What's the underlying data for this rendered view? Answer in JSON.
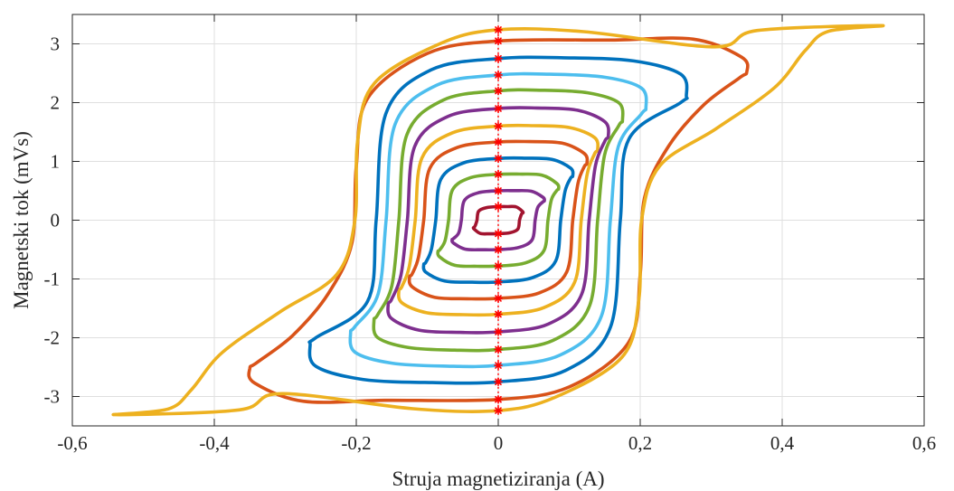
{
  "chart_data": {
    "type": "line",
    "title": "",
    "xlabel": "Struja magnetiziranja (A)",
    "ylabel": "Magnetski tok (mVs)",
    "xlim": [
      -0.6,
      0.6
    ],
    "ylim": [
      -3.5,
      3.5
    ],
    "xticks": [
      -0.6,
      -0.4,
      -0.2,
      0,
      0.2,
      0.4,
      0.6
    ],
    "xtick_labels": [
      "-0,6",
      "-0,4",
      "-0,2",
      "0",
      "0,2",
      "0,4",
      "0,6"
    ],
    "yticks": [
      -3,
      -2,
      -1,
      0,
      1,
      2,
      3
    ],
    "ytick_labels": [
      "-3",
      "-2",
      "-1",
      "0",
      "1",
      "2",
      "3"
    ],
    "grid": true,
    "legend": "none",
    "series": [
      {
        "color": "#edb120",
        "saturated": true,
        "i_peak": 0.54,
        "phi_peak": 3.31,
        "phi_r": 3.24,
        "i_c": 0.198,
        "i_knee": 0.305,
        "phi_knee": 2.95
      },
      {
        "color": "#d95319",
        "saturated": true,
        "i_peak": 0.35,
        "phi_peak": 2.52,
        "phi_r": 3.05,
        "i_c": 0.2,
        "i_knee": 0.275,
        "phi_knee": 3.08
      },
      {
        "color": "#0072bd",
        "saturated": false,
        "i_peak": 0.265,
        "phi_peak": 2.3,
        "phi_r": 2.75,
        "i_c": 0.172
      },
      {
        "color": "#4dbeee",
        "saturated": false,
        "i_peak": 0.208,
        "phi_peak": 2.08,
        "phi_r": 2.47,
        "i_c": 0.158
      },
      {
        "color": "#77ac30",
        "saturated": false,
        "i_peak": 0.175,
        "phi_peak": 1.85,
        "phi_r": 2.2,
        "i_c": 0.14
      },
      {
        "color": "#7e2f8e",
        "saturated": false,
        "i_peak": 0.155,
        "phi_peak": 1.55,
        "phi_r": 1.9,
        "i_c": 0.128
      },
      {
        "color": "#edb120",
        "saturated": false,
        "i_peak": 0.14,
        "phi_peak": 1.3,
        "phi_r": 1.6,
        "i_c": 0.117
      },
      {
        "color": "#d95319",
        "saturated": false,
        "i_peak": 0.125,
        "phi_peak": 1.05,
        "phi_r": 1.33,
        "i_c": 0.105
      },
      {
        "color": "#0072bd",
        "saturated": false,
        "i_peak": 0.105,
        "phi_peak": 0.82,
        "phi_r": 1.05,
        "i_c": 0.088
      },
      {
        "color": "#77ac30",
        "saturated": false,
        "i_peak": 0.085,
        "phi_peak": 0.58,
        "phi_r": 0.78,
        "i_c": 0.07
      },
      {
        "color": "#7e2f8e",
        "saturated": false,
        "i_peak": 0.065,
        "phi_peak": 0.36,
        "phi_r": 0.5,
        "i_c": 0.052
      },
      {
        "color": "#a2142f",
        "saturated": false,
        "i_peak": 0.035,
        "phi_peak": 0.14,
        "phi_r": 0.23,
        "i_c": 0.03
      }
    ],
    "remanence_markers": {
      "color": "#ff0000",
      "x": 0,
      "y": [
        3.24,
        3.05,
        2.75,
        2.47,
        2.2,
        1.9,
        1.6,
        1.33,
        1.05,
        0.78,
        0.5,
        0.23,
        -0.23,
        -0.5,
        -0.78,
        -1.05,
        -1.33,
        -1.6,
        -1.9,
        -2.2,
        -2.47,
        -2.75,
        -3.05,
        -3.24
      ]
    }
  }
}
